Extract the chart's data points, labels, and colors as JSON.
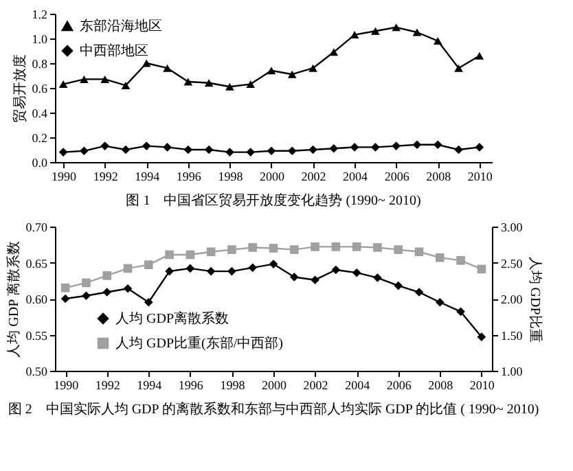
{
  "chart_data": [
    {
      "type": "line",
      "title": "图 1　中国省区贸易开放度变化趋势 (1990~ 2010)",
      "ylabel": "贸易开放度",
      "x": [
        1990,
        1991,
        1992,
        1993,
        1994,
        1995,
        1996,
        1997,
        1998,
        1999,
        2000,
        2001,
        2002,
        2003,
        2004,
        2005,
        2006,
        2007,
        2008,
        2009,
        2010
      ],
      "xlim": [
        1989.6,
        2010.6
      ],
      "xticks": [
        1990,
        1992,
        1994,
        1996,
        1998,
        2000,
        2002,
        2004,
        2006,
        2008,
        2010
      ],
      "ylim": [
        0,
        1.2
      ],
      "yticks": [
        {
          "value": 0,
          "label": "0.0"
        },
        0.2,
        0.4,
        0.6,
        0.8,
        {
          "value": 1,
          "label": "1.0"
        },
        1.2
      ],
      "legend": "top left",
      "line_style": "solid",
      "series": [
        {
          "name": "东部沿海地区",
          "color": "#000000",
          "marker": "triangle",
          "values": [
            0.63,
            0.67,
            0.67,
            0.62,
            0.8,
            0.76,
            0.65,
            0.64,
            0.61,
            0.63,
            0.74,
            0.71,
            0.76,
            0.89,
            1.03,
            1.06,
            1.09,
            1.05,
            0.98,
            0.76,
            0.86
          ]
        },
        {
          "name": "中西部地区",
          "color": "#000000",
          "marker": "diamond",
          "values": [
            0.08,
            0.09,
            0.13,
            0.1,
            0.13,
            0.12,
            0.1,
            0.1,
            0.08,
            0.08,
            0.09,
            0.09,
            0.1,
            0.11,
            0.12,
            0.12,
            0.13,
            0.14,
            0.14,
            0.1,
            0.12
          ]
        }
      ]
    },
    {
      "type": "line",
      "title": "图 2　中国实际人均 GDP 的离散系数和东部与中西部人均实际 GDP 的比值 ( 1990~ 2010)",
      "ylabel": "人均 GDP 离散系数",
      "y2label": "人均 GDP比重",
      "x": [
        1990,
        1991,
        1992,
        1993,
        1994,
        1995,
        1996,
        1997,
        1998,
        1999,
        2000,
        2001,
        2002,
        2003,
        2004,
        2005,
        2006,
        2007,
        2008,
        2009,
        2010
      ],
      "xlim": [
        1989.5,
        2010.5
      ],
      "xticks": [
        1990,
        1992,
        1994,
        1996,
        1998,
        2000,
        2002,
        2004,
        2006,
        2008,
        2010
      ],
      "ylim": [
        0.5,
        0.7
      ],
      "yticks": [
        {
          "value": 0.5,
          "label": "0.50"
        },
        0.55,
        {
          "value": 0.6,
          "label": "0.60"
        },
        0.65,
        {
          "value": 0.7,
          "label": "0.70"
        }
      ],
      "y2lim": [
        1,
        3
      ],
      "y2ticks": [
        {
          "value": 1,
          "label": "1.00"
        },
        {
          "value": 1.5,
          "label": "1.50"
        },
        {
          "value": 2,
          "label": "2.00"
        },
        {
          "value": 2.5,
          "label": "2.50"
        },
        {
          "value": 3,
          "label": "3.00"
        }
      ],
      "legend": "left",
      "line_style": "solid",
      "series": [
        {
          "name": "人均 GDP离散系数",
          "color": "#000000",
          "marker": "diamond",
          "values": [
            0.6,
            0.604,
            0.609,
            0.614,
            0.595,
            0.638,
            0.642,
            0.638,
            0.638,
            0.643,
            0.648,
            0.63,
            0.626,
            0.64,
            0.636,
            0.629,
            0.618,
            0.609,
            0.595,
            0.582,
            0.547
          ]
        },
        {
          "name": "人均 GDP比重(东部/中西部)",
          "color": "#a0a0a0",
          "marker": "square",
          "axis": "y2",
          "values": [
            2.15,
            2.22,
            2.32,
            2.42,
            2.47,
            2.61,
            2.61,
            2.65,
            2.68,
            2.71,
            2.7,
            2.68,
            2.72,
            2.72,
            2.72,
            2.71,
            2.68,
            2.65,
            2.57,
            2.53,
            2.41
          ]
        }
      ]
    }
  ]
}
